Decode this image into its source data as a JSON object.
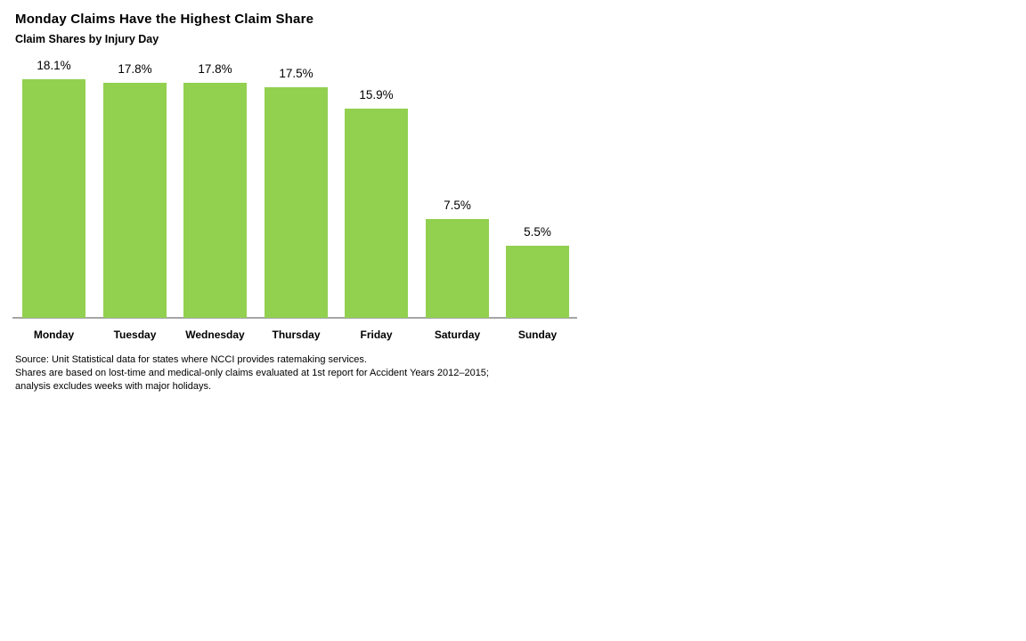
{
  "page": {
    "title": "Monday Claims Have the Highest Claim Share",
    "subtitle": "Claim Shares by Injury Day"
  },
  "chart_data": {
    "type": "bar",
    "title": "Monday Claims Have the Highest Claim Share",
    "subtitle": "Claim Shares by Injury Day",
    "categories": [
      "Monday",
      "Tuesday",
      "Wednesday",
      "Thursday",
      "Friday",
      "Saturday",
      "Sunday"
    ],
    "values": [
      18.1,
      17.8,
      17.8,
      17.5,
      15.9,
      7.5,
      5.5
    ],
    "data_labels": [
      "18.1%",
      "17.8%",
      "17.8%",
      "17.5%",
      "15.9%",
      "7.5%",
      "5.5%"
    ],
    "xlabel": "",
    "ylabel": "",
    "ylim": [
      0,
      20
    ],
    "grid": false,
    "legend": "none",
    "y_axis_visible": false,
    "bar_color": "#92D050",
    "axis_line_color": "#A6A6A6"
  },
  "footnotes": [
    "Source: Unit Statistical data for states where NCCI provides ratemaking services.",
    "Shares are based on lost-time and medical-only claims evaluated at 1st report for Accident Years 2012–2015;",
    "analysis excludes weeks with major holidays."
  ]
}
